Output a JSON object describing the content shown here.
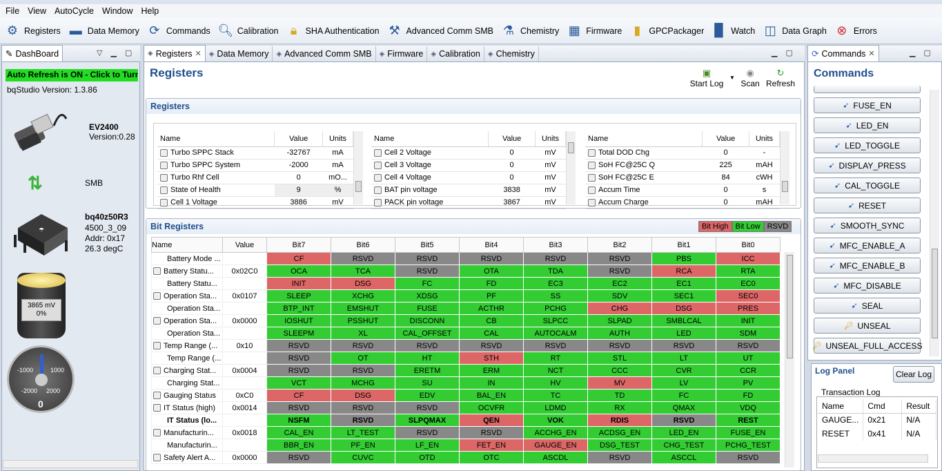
{
  "menu": [
    "File",
    "View",
    "AutoCycle",
    "Window",
    "Help"
  ],
  "toolbar": [
    {
      "label": "Registers",
      "icon": "gear-icon"
    },
    {
      "label": "Data Memory",
      "icon": "memory-chip-icon"
    },
    {
      "label": "Commands",
      "icon": "refresh-arrows-icon"
    },
    {
      "label": "Calibration",
      "icon": "magnifier-icon"
    },
    {
      "label": "SHA Authentication",
      "icon": "padlock-icon"
    },
    {
      "label": "Advanced Comm SMB",
      "icon": "toolbox-icon"
    },
    {
      "label": "Chemistry",
      "icon": "flask-icon"
    },
    {
      "label": "Firmware",
      "icon": "circuit-icon"
    },
    {
      "label": "GPCPackager",
      "icon": "zipper-icon"
    },
    {
      "label": "Watch",
      "icon": "book-icon"
    },
    {
      "label": "Data Graph",
      "icon": "graph-icon"
    },
    {
      "label": "Errors",
      "icon": "error-icon"
    }
  ],
  "dashboard": {
    "tab": "DashBoard",
    "auto_refresh": "Auto Refresh is ON - Click to Turn",
    "version": "bqStudio Version:  1.3.86",
    "device_name": "EV2400",
    "device_version": "Version:0.28",
    "protocol": "SMB",
    "chip_name": "bq40z50R3",
    "chip_fw": "4500_3_09",
    "chip_addr": "Addr: 0x17",
    "chip_temp": "26.3 degC",
    "battery_voltage": "3865 mV",
    "battery_pct": "0%",
    "gauge_labels": [
      "-1000",
      "1000",
      "-2000",
      "2000"
    ],
    "gauge_value": "0"
  },
  "tabs": [
    "Registers",
    "Data Memory",
    "Advanced Comm SMB",
    "Firmware",
    "Calibration",
    "Chemistry"
  ],
  "registers": {
    "page_title": "Registers",
    "actions": [
      "Start Log",
      "Scan",
      "Refresh"
    ],
    "section_title": "Registers",
    "headers": [
      "Name",
      "Value",
      "Units"
    ],
    "col1": [
      [
        "Turbo SPPC Stack",
        "-32767",
        "mA"
      ],
      [
        "Turbo SPPC System",
        "-2000",
        "mA"
      ],
      [
        "Turbo Rhf Cell",
        "0",
        "mO..."
      ],
      [
        "State of Health",
        "9",
        "%"
      ],
      [
        "Cell 1 Voltage",
        "3886",
        "mV"
      ]
    ],
    "col2": [
      [
        "Cell 2 Voltage",
        "0",
        "mV"
      ],
      [
        "Cell 3 Voltage",
        "0",
        "mV"
      ],
      [
        "Cell 4 Voltage",
        "0",
        "mV"
      ],
      [
        "BAT pin voltage",
        "3838",
        "mV"
      ],
      [
        "PACK pin voltage",
        "3867",
        "mV"
      ]
    ],
    "col3": [
      [
        "Total DOD Chg",
        "0",
        "-"
      ],
      [
        "SoH FC@25C Q",
        "225",
        "mAH"
      ],
      [
        "SoH FC@25C E",
        "84",
        "cWH"
      ],
      [
        "Accum Time",
        "0",
        "s"
      ],
      [
        "Accum Charge",
        "0",
        "mAH"
      ]
    ]
  },
  "bit_registers": {
    "title": "Bit Registers",
    "legend": [
      "Bit High",
      "Bit Low",
      "RSVD"
    ],
    "headers": [
      "Name",
      "Value",
      "Bit7",
      "Bit6",
      "Bit5",
      "Bit4",
      "Bit3",
      "Bit2",
      "Bit1",
      "Bit0"
    ],
    "rows": [
      {
        "name": "Battery Mode ...",
        "value": "",
        "lock": false,
        "bits": [
          [
            "CF",
            "r"
          ],
          [
            "RSVD",
            "y"
          ],
          [
            "RSVD",
            "y"
          ],
          [
            "RSVD",
            "y"
          ],
          [
            "RSVD",
            "y"
          ],
          [
            "RSVD",
            "y"
          ],
          [
            "PBS",
            "g"
          ],
          [
            "ICC",
            "r"
          ]
        ]
      },
      {
        "name": "Battery Statu...",
        "value": "0x02C0",
        "lock": true,
        "bits": [
          [
            "OCA",
            "g"
          ],
          [
            "TCA",
            "g"
          ],
          [
            "RSVD",
            "y"
          ],
          [
            "OTA",
            "g"
          ],
          [
            "TDA",
            "g"
          ],
          [
            "RSVD",
            "y"
          ],
          [
            "RCA",
            "r"
          ],
          [
            "RTA",
            "g"
          ]
        ]
      },
      {
        "name": "Battery Statu...",
        "value": "",
        "lock": false,
        "bits": [
          [
            "INIT",
            "r"
          ],
          [
            "DSG",
            "r"
          ],
          [
            "FC",
            "g"
          ],
          [
            "FD",
            "g"
          ],
          [
            "EC3",
            "g"
          ],
          [
            "EC2",
            "g"
          ],
          [
            "EC1",
            "g"
          ],
          [
            "EC0",
            "g"
          ]
        ]
      },
      {
        "name": "Operation Sta...",
        "value": "0x0107",
        "lock": true,
        "bits": [
          [
            "SLEEP",
            "g"
          ],
          [
            "XCHG",
            "g"
          ],
          [
            "XDSG",
            "g"
          ],
          [
            "PF",
            "g"
          ],
          [
            "SS",
            "g"
          ],
          [
            "SDV",
            "g"
          ],
          [
            "SEC1",
            "g"
          ],
          [
            "SEC0",
            "r"
          ]
        ]
      },
      {
        "name": "Operation Sta...",
        "value": "",
        "lock": false,
        "bits": [
          [
            "BTP_INT",
            "g"
          ],
          [
            "EMSHUT",
            "g"
          ],
          [
            "FUSE",
            "g"
          ],
          [
            "ACTHR",
            "g"
          ],
          [
            "PCHG",
            "g"
          ],
          [
            "CHG",
            "r"
          ],
          [
            "DSG",
            "r"
          ],
          [
            "PRES",
            "r"
          ]
        ]
      },
      {
        "name": "Operation Sta...",
        "value": "0x0000",
        "lock": true,
        "bits": [
          [
            "IOSHUT",
            "g"
          ],
          [
            "PSSHUT",
            "g"
          ],
          [
            "DISCONN",
            "g"
          ],
          [
            "CB",
            "g"
          ],
          [
            "SLPCC",
            "g"
          ],
          [
            "SLPAD",
            "g"
          ],
          [
            "SMBLCAL",
            "g"
          ],
          [
            "INIT",
            "g"
          ]
        ]
      },
      {
        "name": "Operation Sta...",
        "value": "",
        "lock": false,
        "bits": [
          [
            "SLEEPM",
            "g"
          ],
          [
            "XL",
            "g"
          ],
          [
            "CAL_OFFSET",
            "g"
          ],
          [
            "CAL",
            "g"
          ],
          [
            "AUTOCALM",
            "g"
          ],
          [
            "AUTH",
            "g"
          ],
          [
            "LED",
            "g"
          ],
          [
            "SDM",
            "g"
          ]
        ]
      },
      {
        "name": "Temp Range (...",
        "value": "0x10",
        "lock": true,
        "bits": [
          [
            "RSVD",
            "y"
          ],
          [
            "RSVD",
            "y"
          ],
          [
            "RSVD",
            "y"
          ],
          [
            "RSVD",
            "y"
          ],
          [
            "RSVD",
            "y"
          ],
          [
            "RSVD",
            "y"
          ],
          [
            "RSVD",
            "y"
          ],
          [
            "RSVD",
            "y"
          ]
        ]
      },
      {
        "name": "Temp Range (...",
        "value": "",
        "lock": false,
        "bits": [
          [
            "RSVD",
            "y"
          ],
          [
            "OT",
            "g"
          ],
          [
            "HT",
            "g"
          ],
          [
            "STH",
            "r"
          ],
          [
            "RT",
            "g"
          ],
          [
            "STL",
            "g"
          ],
          [
            "LT",
            "g"
          ],
          [
            "UT",
            "g"
          ]
        ]
      },
      {
        "name": "Charging Stat...",
        "value": "0x0004",
        "lock": true,
        "bits": [
          [
            "RSVD",
            "y"
          ],
          [
            "RSVD",
            "y"
          ],
          [
            "ERETM",
            "g"
          ],
          [
            "ERM",
            "g"
          ],
          [
            "NCT",
            "g"
          ],
          [
            "CCC",
            "g"
          ],
          [
            "CVR",
            "g"
          ],
          [
            "CCR",
            "g"
          ]
        ]
      },
      {
        "name": "Charging Stat...",
        "value": "",
        "lock": false,
        "bits": [
          [
            "VCT",
            "g"
          ],
          [
            "MCHG",
            "g"
          ],
          [
            "SU",
            "g"
          ],
          [
            "IN",
            "g"
          ],
          [
            "HV",
            "g"
          ],
          [
            "MV",
            "r"
          ],
          [
            "LV",
            "g"
          ],
          [
            "PV",
            "g"
          ]
        ]
      },
      {
        "name": "Gauging Status",
        "value": "0xC0",
        "lock": true,
        "bits": [
          [
            "CF",
            "r"
          ],
          [
            "DSG",
            "r"
          ],
          [
            "EDV",
            "g"
          ],
          [
            "BAL_EN",
            "g"
          ],
          [
            "TC",
            "g"
          ],
          [
            "TD",
            "g"
          ],
          [
            "FC",
            "g"
          ],
          [
            "FD",
            "g"
          ]
        ]
      },
      {
        "name": "IT Status (high)",
        "value": "0x0014",
        "lock": true,
        "bits": [
          [
            "RSVD",
            "y"
          ],
          [
            "RSVD",
            "y"
          ],
          [
            "RSVD",
            "y"
          ],
          [
            "OCVFR",
            "g"
          ],
          [
            "LDMD",
            "g"
          ],
          [
            "RX",
            "g"
          ],
          [
            "QMAX",
            "g"
          ],
          [
            "VDQ",
            "g"
          ]
        ]
      },
      {
        "name": "IT Status (lo...",
        "value": "",
        "lock": false,
        "bold": true,
        "bits": [
          [
            "NSFM",
            "g"
          ],
          [
            "RSVD",
            "y"
          ],
          [
            "SLPQMAX",
            "g"
          ],
          [
            "QEN",
            "r"
          ],
          [
            "VOK",
            "g"
          ],
          [
            "RDIS",
            "r"
          ],
          [
            "RSVD",
            "y"
          ],
          [
            "REST",
            "g"
          ]
        ]
      },
      {
        "name": "Manufacturin...",
        "value": "0x0018",
        "lock": true,
        "bits": [
          [
            "CAL_EN",
            "g"
          ],
          [
            "LT_TEST",
            "g"
          ],
          [
            "RSVD",
            "y"
          ],
          [
            "RSVD",
            "y"
          ],
          [
            "ACCHG_EN",
            "g"
          ],
          [
            "ACDSG_EN",
            "g"
          ],
          [
            "LED_EN",
            "g"
          ],
          [
            "FUSE_EN",
            "g"
          ]
        ]
      },
      {
        "name": "Manufacturin...",
        "value": "",
        "lock": false,
        "bits": [
          [
            "BBR_EN",
            "g"
          ],
          [
            "PF_EN",
            "g"
          ],
          [
            "LF_EN",
            "g"
          ],
          [
            "FET_EN",
            "r"
          ],
          [
            "GAUGE_EN",
            "r"
          ],
          [
            "DSG_TEST",
            "g"
          ],
          [
            "CHG_TEST",
            "g"
          ],
          [
            "PCHG_TEST",
            "g"
          ]
        ]
      },
      {
        "name": "Safety Alert A...",
        "value": "0x0000",
        "lock": true,
        "bits": [
          [
            "RSVD",
            "y"
          ],
          [
            "CUVC",
            "g"
          ],
          [
            "OTD",
            "g"
          ],
          [
            "OTC",
            "g"
          ],
          [
            "ASCDL",
            "g"
          ],
          [
            "RSVD",
            "y"
          ],
          [
            "ASCCL",
            "g"
          ],
          [
            "RSVD",
            "y"
          ]
        ]
      }
    ]
  },
  "commands": {
    "tab": "Commands",
    "title": "Commands",
    "buttons": [
      "FUSE_EN",
      "LED_EN",
      "LED_TOGGLE",
      "DISPLAY_PRESS",
      "CAL_TOGGLE",
      "RESET",
      "SMOOTH_SYNC",
      "MFC_ENABLE_A",
      "MFC_ENABLE_B",
      "MFC_DISABLE",
      "SEAL",
      "UNSEAL",
      "UNSEAL_FULL_ACCESS"
    ],
    "log_panel": "Log Panel",
    "clear_log": "Clear Log",
    "transaction_log": "Transaction Log",
    "log_headers": [
      "Name",
      "Cmd",
      "Result"
    ],
    "log_rows": [
      [
        "GAUGE...",
        "0x21",
        "N/A"
      ],
      [
        "RESET",
        "0x41",
        "N/A"
      ]
    ]
  },
  "colors": {
    "bit_high": "#dd6666",
    "bit_low": "#33cc33",
    "rsvd": "#888888",
    "accent": "#1f4e8c"
  }
}
